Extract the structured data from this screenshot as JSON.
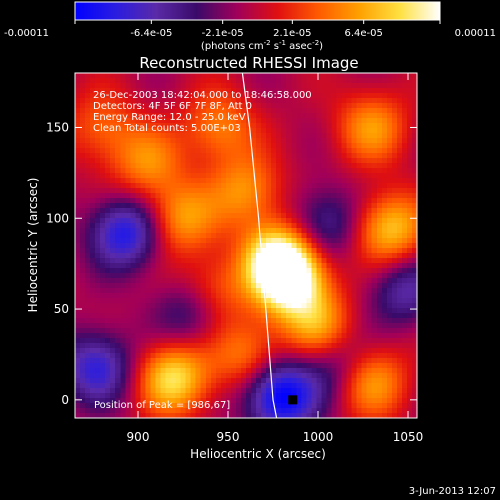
{
  "chart_data": {
    "type": "heatmap",
    "title": "Reconstructed RHESSI Image",
    "xlabel": "Heliocentric X (arcsec)",
    "ylabel": "Heliocentric Y (arcsec)",
    "x_ticks": [
      900,
      950,
      1000,
      1050
    ],
    "y_ticks": [
      0,
      50,
      100,
      150
    ],
    "xlim": [
      865,
      1055
    ],
    "ylim": [
      -10,
      180
    ],
    "colorbar": {
      "ticks": [
        "-0.00011",
        "-6.4e-05",
        "-2.1e-05",
        "2.1e-05",
        "6.4e-05",
        "0.00011"
      ],
      "range": [
        -0.00011,
        0.00011
      ],
      "unit_label_parts": [
        "(photons cm",
        "-2",
        " s",
        "-1",
        " asec",
        "-2",
        ")"
      ]
    },
    "annotations": [
      "26-Dec-2003 18:42:04.000 to 18:46:58.000",
      "Detectors: 4F 5F 6F 7F 8F, Att 0",
      "Energy Range: 12.0 - 25.0 keV",
      "Clean    Total counts: 5.00E+03"
    ],
    "peak_label": "Position of Peak = [986,67]",
    "peak": [
      986,
      67
    ],
    "footer_date": "3-Jun-2013 12:07",
    "limb_curve": [
      [
        958,
        180
      ],
      [
        962,
        150
      ],
      [
        967,
        100
      ],
      [
        971,
        50
      ],
      [
        975,
        0
      ],
      [
        977,
        -10
      ]
    ],
    "colors": {
      "stops": [
        "#0000ff",
        "#2a1de0",
        "#5a2aa8",
        "#3a0a6a",
        "#a0005a",
        "#e01010",
        "#ff5a00",
        "#ffa000",
        "#ffe040",
        "#ffffff"
      ]
    },
    "sources": [
      {
        "x": 893,
        "y": 92,
        "v": -0.8
      },
      {
        "x": 877,
        "y": 18,
        "v": -0.7
      },
      {
        "x": 979,
        "y": 2,
        "v": -1.0
      },
      {
        "x": 1004,
        "y": 97,
        "v": -0.5
      },
      {
        "x": 930,
        "y": 48,
        "v": -0.45
      },
      {
        "x": 1048,
        "y": 60,
        "v": -0.5
      },
      {
        "x": 1010,
        "y": 20,
        "v": -0.4
      },
      {
        "x": 942,
        "y": 60,
        "v": 0.45
      },
      {
        "x": 924,
        "y": 100,
        "v": 0.6
      },
      {
        "x": 978,
        "y": 78,
        "v": 0.95
      },
      {
        "x": 985,
        "y": 65,
        "v": 1.0
      },
      {
        "x": 960,
        "y": 115,
        "v": 0.55
      },
      {
        "x": 1040,
        "y": 94,
        "v": 0.75
      },
      {
        "x": 920,
        "y": 12,
        "v": 0.85
      },
      {
        "x": 1000,
        "y": 40,
        "v": 0.6
      },
      {
        "x": 945,
        "y": 150,
        "v": 0.5
      },
      {
        "x": 1030,
        "y": 10,
        "v": 0.6
      },
      {
        "x": 905,
        "y": 130,
        "v": 0.5
      },
      {
        "x": 1030,
        "y": 150,
        "v": 0.55
      },
      {
        "x": 880,
        "y": 150,
        "v": 0.4
      },
      {
        "x": 960,
        "y": 25,
        "v": 0.5
      }
    ]
  }
}
